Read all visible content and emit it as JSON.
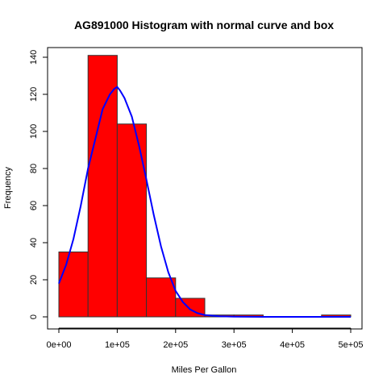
{
  "chart_data": {
    "type": "bar",
    "title": "AG891000 Histogram with normal curve and box",
    "xlabel": "Miles Per Gallon",
    "ylabel": "Frequency",
    "xlim": [
      0,
      500000
    ],
    "ylim": [
      0,
      145
    ],
    "bins": [
      {
        "start": 0,
        "end": 50000,
        "count": 35
      },
      {
        "start": 50000,
        "end": 100000,
        "count": 141
      },
      {
        "start": 100000,
        "end": 150000,
        "count": 104
      },
      {
        "start": 150000,
        "end": 200000,
        "count": 21
      },
      {
        "start": 200000,
        "end": 250000,
        "count": 10
      },
      {
        "start": 250000,
        "end": 300000,
        "count": 1
      },
      {
        "start": 300000,
        "end": 350000,
        "count": 1
      },
      {
        "start": 350000,
        "end": 400000,
        "count": 0
      },
      {
        "start": 400000,
        "end": 450000,
        "count": 0
      },
      {
        "start": 450000,
        "end": 500000,
        "count": 1
      }
    ],
    "normal_curve": {
      "x": [
        0,
        12500,
        25000,
        37500,
        50000,
        62500,
        75000,
        87500,
        95000,
        100000,
        105000,
        112500,
        125000,
        137500,
        150000,
        162500,
        175000,
        187500,
        200000,
        212500,
        225000,
        237500,
        250000,
        275000,
        300000,
        350000,
        400000,
        450000,
        500000
      ],
      "y": [
        18,
        28,
        42,
        60,
        80,
        96,
        112,
        120,
        123,
        124,
        122,
        118,
        108,
        92,
        74,
        55,
        38,
        24,
        14,
        8,
        4,
        2,
        1,
        0.3,
        0.1,
        0,
        0,
        0,
        0
      ]
    },
    "x_ticks": [
      {
        "value": 0,
        "label": "0e+00"
      },
      {
        "value": 100000,
        "label": "1e+05"
      },
      {
        "value": 200000,
        "label": "2e+05"
      },
      {
        "value": 300000,
        "label": "3e+05"
      },
      {
        "value": 400000,
        "label": "4e+05"
      },
      {
        "value": 500000,
        "label": "5e+05"
      }
    ],
    "y_ticks": [
      {
        "value": 0,
        "label": "0"
      },
      {
        "value": 20,
        "label": "20"
      },
      {
        "value": 40,
        "label": "40"
      },
      {
        "value": 60,
        "label": "60"
      },
      {
        "value": 80,
        "label": "80"
      },
      {
        "value": 100,
        "label": "100"
      },
      {
        "value": 120,
        "label": "120"
      },
      {
        "value": 140,
        "label": "140"
      }
    ],
    "bar_color": "#ff0000",
    "curve_color": "#0000ff",
    "grid": false,
    "box": true
  }
}
